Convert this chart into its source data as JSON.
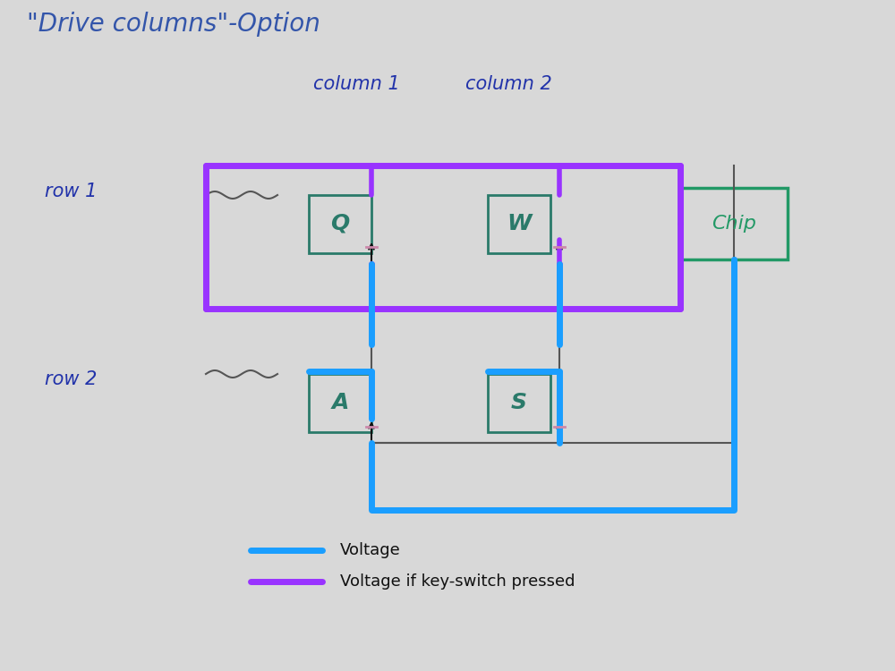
{
  "title": "\"Drive columns\"-Option",
  "title_color": "#3355aa",
  "title_fontsize": 20,
  "bg_color": "#d8d8d8",
  "col1_label": "column 1",
  "col2_label": "column 2",
  "row1_label": "row 1",
  "row2_label": "row 2",
  "label_color": "#2233aa",
  "switch_color": "#2a7a6a",
  "chip_color": "#229966",
  "blue": "#1a9eff",
  "purple": "#9933ff",
  "dark_gray": "#444444",
  "legend_voltage": "Voltage",
  "legend_voltage_pressed": "Voltage if key-switch pressed"
}
